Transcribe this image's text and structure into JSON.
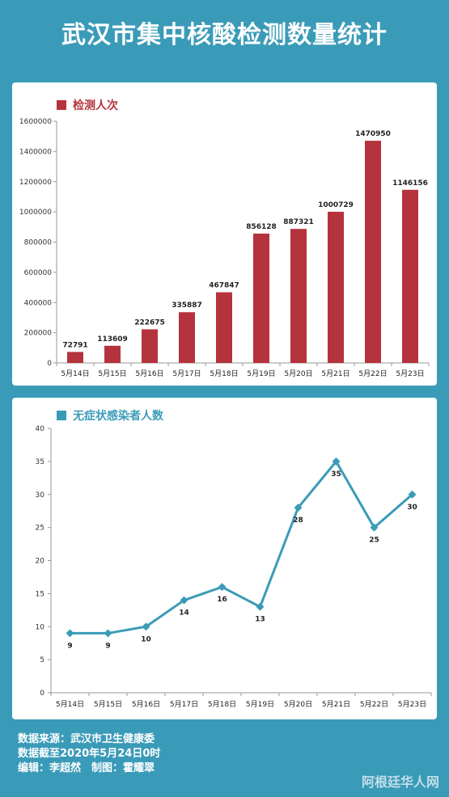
{
  "title": "武汉市集中核酸检测数量统计",
  "chart_data": [
    {
      "type": "bar",
      "legend": "检测人次",
      "categories": [
        "5月14日",
        "5月15日",
        "5月16日",
        "5月17日",
        "5月18日",
        "5月19日",
        "5月20日",
        "5月21日",
        "5月22日",
        "5月23日"
      ],
      "series": [
        {
          "name": "检测人次",
          "values": [
            72791,
            113609,
            222675,
            335887,
            467847,
            856128,
            887321,
            1000729,
            1470950,
            1146156
          ]
        }
      ],
      "yticks": [
        0,
        200000,
        400000,
        600000,
        800000,
        1000000,
        1200000,
        1400000,
        1600000
      ],
      "ylim": [
        0,
        1600000
      ],
      "color": "#b5333c"
    },
    {
      "type": "line",
      "legend": "无症状感染者人数",
      "categories": [
        "5月14日",
        "5月15日",
        "5月16日",
        "5月17日",
        "5月18日",
        "5月19日",
        "5月20日",
        "5月21日",
        "5月22日",
        "5月23日"
      ],
      "series": [
        {
          "name": "无症状感染者人数",
          "values": [
            9,
            9,
            10,
            14,
            16,
            13,
            28,
            35,
            25,
            30
          ]
        }
      ],
      "yticks": [
        0,
        5,
        10,
        15,
        20,
        25,
        30,
        35,
        40
      ],
      "ylim": [
        0,
        40
      ],
      "color": "#3a9bb8"
    }
  ],
  "footer": {
    "source": "数据来源：武汉市卫生健康委",
    "cutoff": "数据截至2020年5月24日0时",
    "credits": "编辑：李超然　制图：霍耀翠"
  },
  "watermark": "阿根廷华人网"
}
